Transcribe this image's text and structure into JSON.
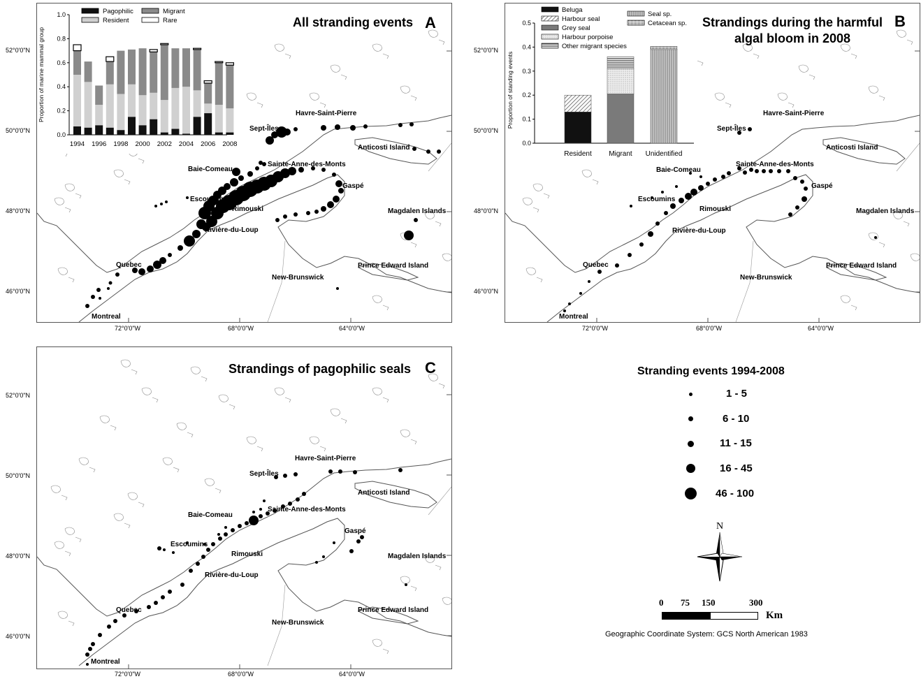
{
  "panelA": {
    "title": "All stranding events",
    "letter": "A"
  },
  "panelB": {
    "title_line1": "Strandings during the harmful",
    "title_line2": "algal bloom in 2008",
    "letter": "B"
  },
  "panelC": {
    "title": "Strandings of pagophilic seals",
    "letter": "C"
  },
  "places": {
    "havre": "Havre-Saint-Pierre",
    "septiles": "Sept-Îles",
    "anticosti": "Anticosti   Island",
    "baie": "Baie-Comeau",
    "sainteanne": "Sainte-Anne-des-Monts",
    "gaspe": "Gaspé",
    "escoumins": "Escoumins",
    "rimouski": "Rimouski",
    "magdalen": "Magdalen   Islands",
    "riviere": "Rivière-du-Loup",
    "quebec": "Quebec",
    "prince": "Prince   Edward   Island",
    "newbrunswick": "New-Brunswick",
    "montreal": "Montreal"
  },
  "grid": {
    "lat": [
      "52°0'0\"N",
      "50°0'0\"N",
      "48°0'0\"N",
      "46°0'0\"N"
    ],
    "lon": [
      "72°0'0\"W",
      "68°0'0\"W",
      "64°0'0\"W"
    ]
  },
  "insetA": {
    "ylabel": "Proportion of marine mammal group",
    "legend": [
      "Pagophilic",
      "Migrant",
      "Resident",
      "Rare"
    ],
    "chart_data": {
      "type": "bar",
      "categories": [
        "1994",
        "1995",
        "1996",
        "1997",
        "1998",
        "1999",
        "2000",
        "2001",
        "2002",
        "2003",
        "2004",
        "2005",
        "2006",
        "2007",
        "2008"
      ],
      "xticks": [
        "1994",
        "1996",
        "1998",
        "2000",
        "2002",
        "2004",
        "2006",
        "2008"
      ],
      "yticks": [
        "0.0",
        "0.2",
        "0.4",
        "0.6",
        "0.8",
        "1.0"
      ],
      "ylim": [
        0,
        1
      ],
      "series": [
        {
          "name": "Pagophilic",
          "color": "#111111",
          "values": [
            0.07,
            0.06,
            0.08,
            0.06,
            0.04,
            0.15,
            0.08,
            0.13,
            0.02,
            0.05,
            0.01,
            0.15,
            0.18,
            0.02,
            0.02
          ]
        },
        {
          "name": "Resident",
          "color": "#d0d0d0",
          "values": [
            0.43,
            0.38,
            0.17,
            0.36,
            0.3,
            0.27,
            0.25,
            0.22,
            0.27,
            0.34,
            0.39,
            0.22,
            0.08,
            0.23,
            0.2
          ]
        },
        {
          "name": "Migrant",
          "color": "#8a8a8a",
          "values": [
            0.2,
            0.17,
            0.16,
            0.19,
            0.36,
            0.29,
            0.39,
            0.34,
            0.46,
            0.33,
            0.32,
            0.34,
            0.17,
            0.35,
            0.36
          ]
        },
        {
          "name": "Rare",
          "color": "#ffffff",
          "values": [
            0.05,
            0,
            0,
            0.04,
            0,
            0,
            0,
            0.02,
            0.01,
            0,
            0,
            0.01,
            0.02,
            0.01,
            0.02
          ]
        }
      ]
    }
  },
  "insetB": {
    "ylabel": "Proportion of standing events",
    "legend": [
      "Beluga",
      "Harbour seal",
      "Grey seal",
      "Harbour porpoise",
      "Other migrant species",
      "Seal sp.",
      "Cetacean sp."
    ],
    "chart_data": {
      "type": "bar",
      "categories": [
        "Resident",
        "Migrant",
        "Unidentified"
      ],
      "yticks": [
        "0.0",
        "0.1",
        "0.2",
        "0.3",
        "0.4",
        "0.5"
      ],
      "ylim": [
        0,
        0.5
      ],
      "series": [
        {
          "name": "Beluga",
          "values": [
            0.13,
            0,
            0
          ]
        },
        {
          "name": "Harbour seal",
          "values": [
            0.07,
            0,
            0
          ]
        },
        {
          "name": "Grey seal",
          "values": [
            0,
            0.205,
            0
          ]
        },
        {
          "name": "Harbour porpoise",
          "values": [
            0,
            0.105,
            0
          ]
        },
        {
          "name": "Other migrant species",
          "values": [
            0,
            0.05,
            0
          ]
        },
        {
          "name": "Seal sp.",
          "values": [
            0,
            0,
            0.39
          ]
        },
        {
          "name": "Cetacean sp.",
          "values": [
            0,
            0,
            0.013
          ]
        }
      ]
    }
  },
  "legend": {
    "title": "Stranding events 1994-2008",
    "classes": [
      "1 - 5",
      "6 - 10",
      "11 - 15",
      "16 - 45",
      "46 - 100"
    ],
    "north": "N",
    "scale_numbers": [
      "0",
      "75",
      "150",
      "300"
    ],
    "scale_unit": "Km",
    "crs": "Geographic Coordinate System: GCS North American 1983"
  }
}
